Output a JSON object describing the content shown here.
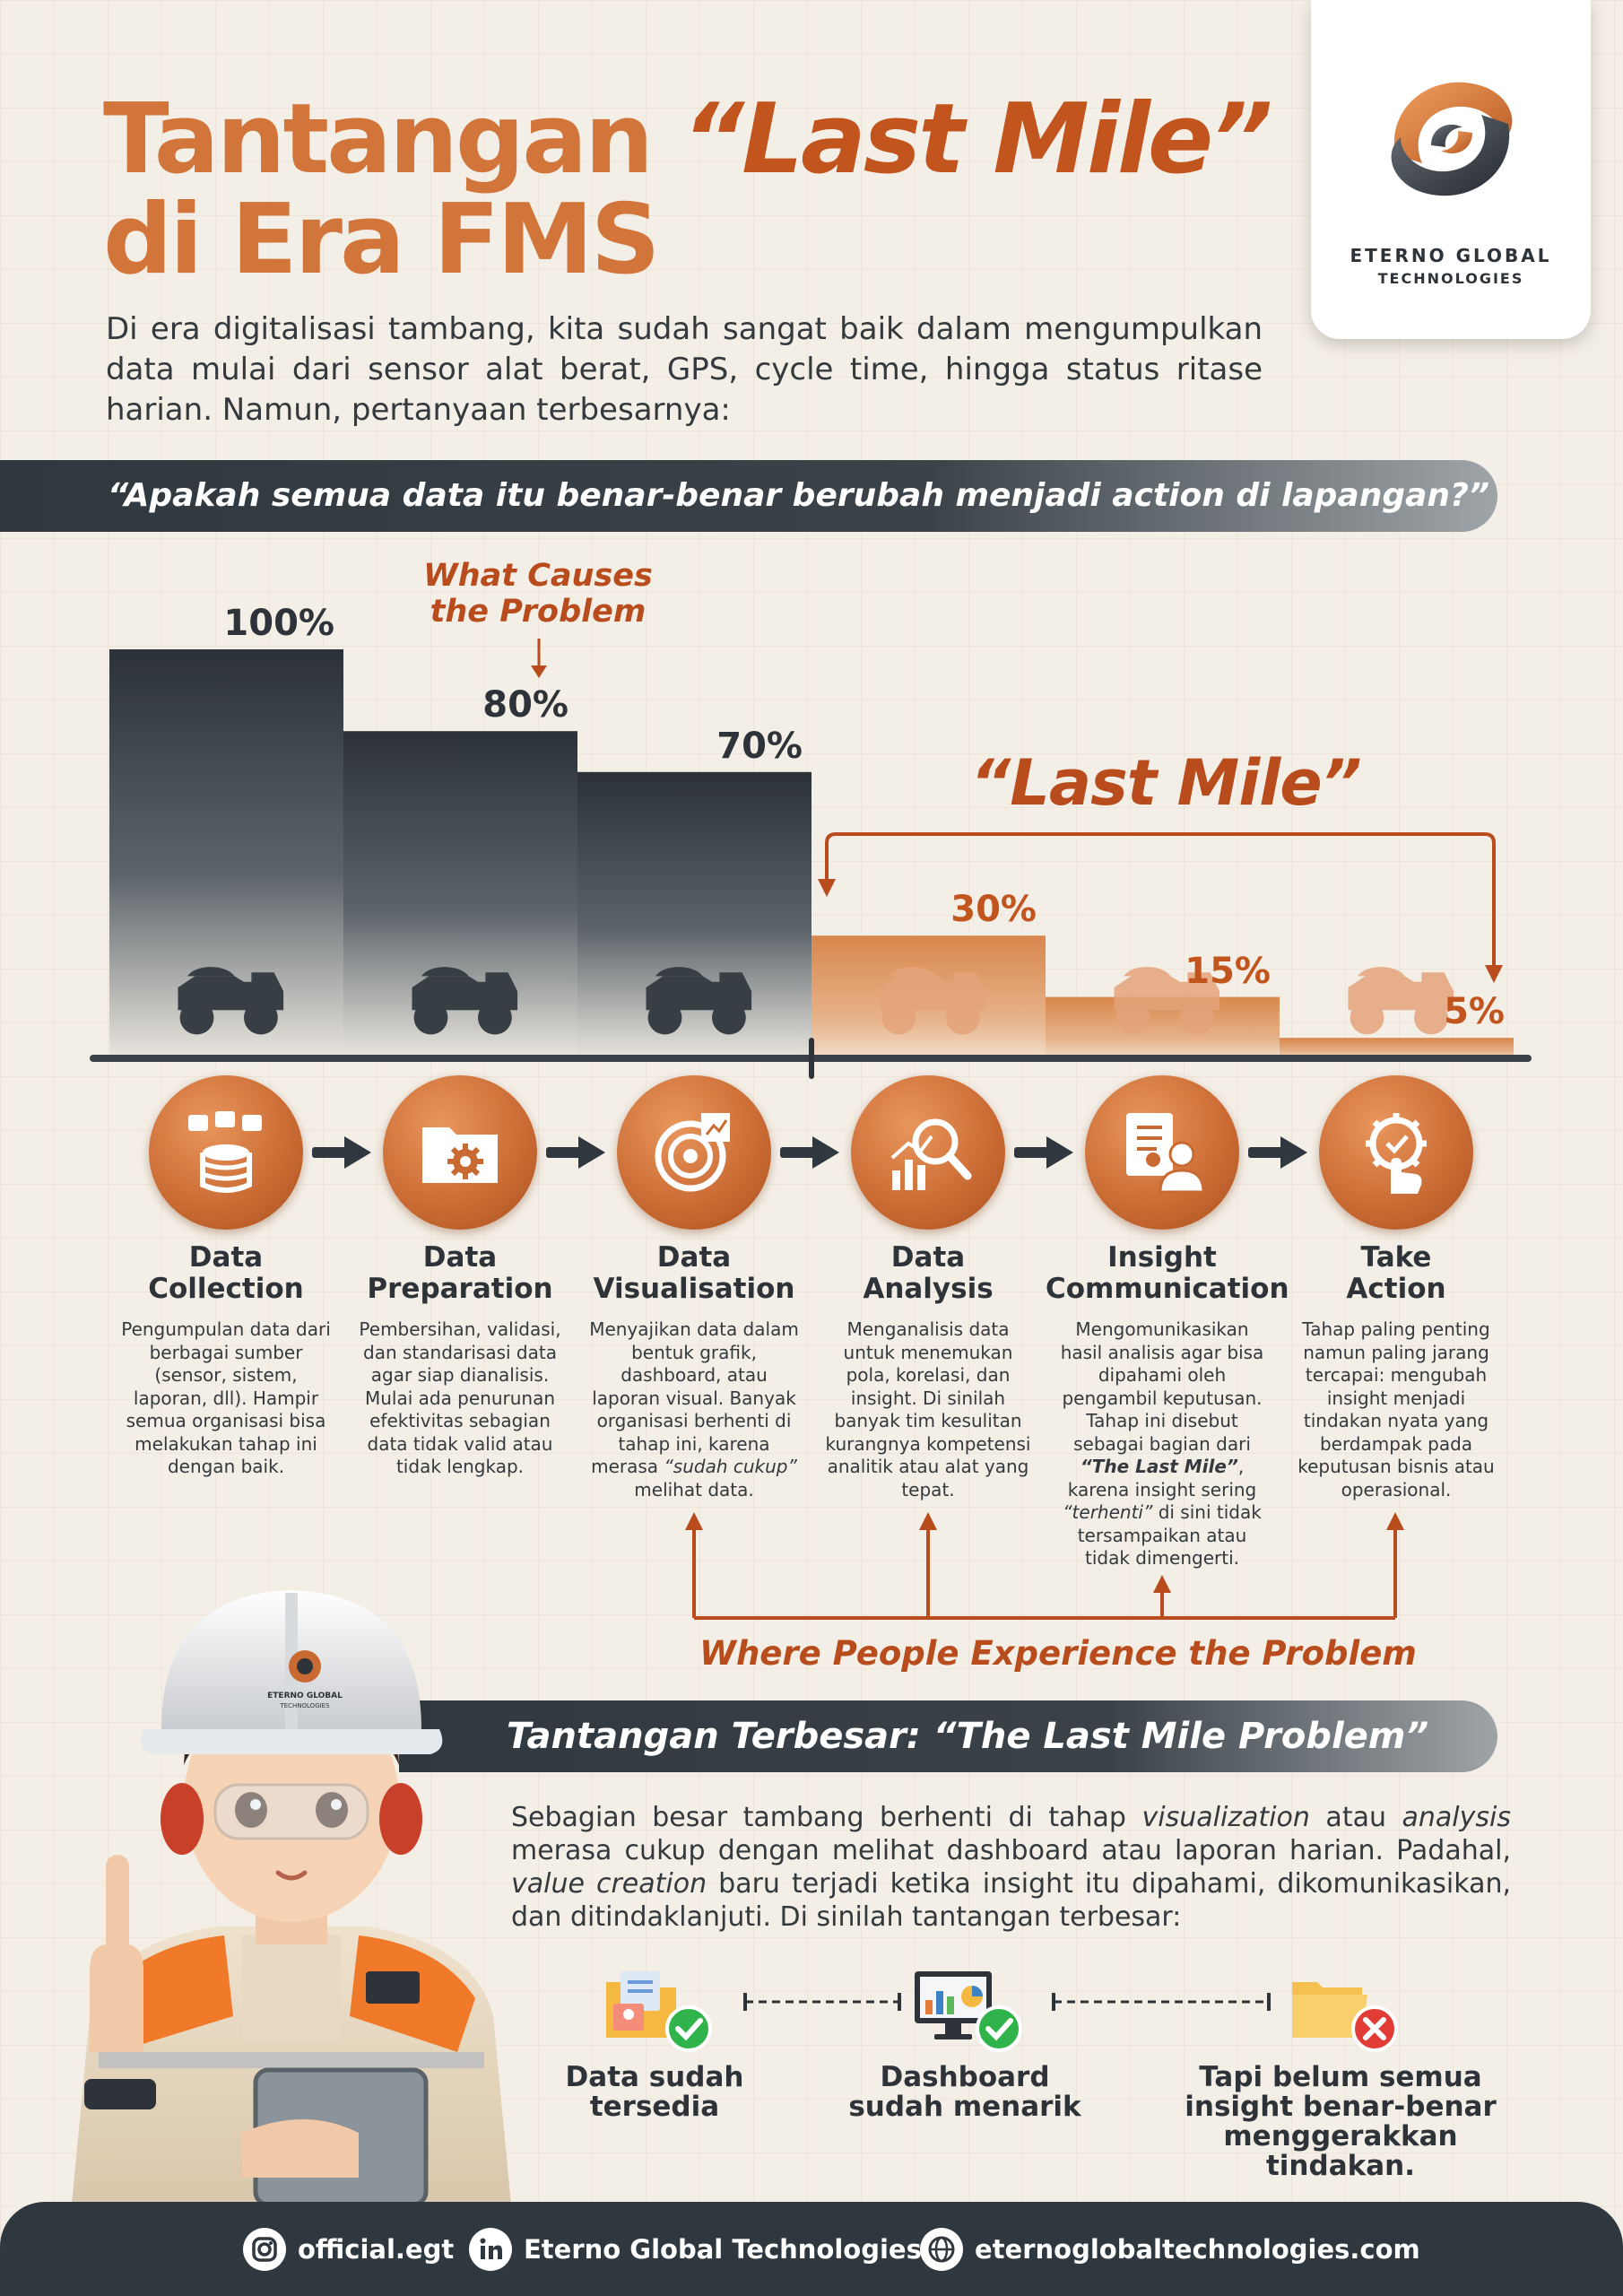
{
  "header": {
    "title_part1": "Tantangan ",
    "title_em": "“Last Mile”",
    "title_line2": "di Era FMS",
    "intro": "Di era digitalisasi tambang, kita sudah sangat baik dalam mengumpulkan data mulai dari sensor alat berat, GPS, cycle time, hingga status ritase harian. Namun, pertanyaan terbesarnya:"
  },
  "logo": {
    "line1": "ETERNO GLOBAL",
    "line2": "TECHNOLOGIES",
    "icon": "eterno-logo-icon"
  },
  "question": "“Apakah semua data itu benar-benar berubah menjadi action di lapangan?”",
  "chart": {
    "causes_label": "What Causes the Problem",
    "last_mile_label": "“Last Mile”",
    "bar_color_dark": "#2f363c",
    "bar_color_orange": "#d98a52"
  },
  "chart_data": {
    "type": "bar",
    "categories": [
      "Data Collection",
      "Data Preparation",
      "Data Visualisation",
      "Data Analysis",
      "Insight Communication",
      "Take Action"
    ],
    "values": [
      100,
      80,
      70,
      30,
      15,
      5
    ],
    "value_labels": [
      "100%",
      "80%",
      "70%",
      "30%",
      "15%",
      "5%"
    ],
    "title": "",
    "xlabel": "",
    "ylabel": "",
    "ylim": [
      0,
      100
    ],
    "grid": false
  },
  "steps": [
    {
      "title": "Data Collection",
      "icon": "database-icon",
      "desc": "Pengumpulan data dari berbagai sumber (sensor, sistem, laporan, dll). Hampir semua organisasi bisa melakukan tahap ini dengan baik."
    },
    {
      "title": "Data Preparation",
      "icon": "folder-gear-icon",
      "desc": "Pembersihan, validasi, dan standarisasi data agar siap dianalisis. Mulai ada penurunan efektivitas sebagian data tidak valid atau tidak lengkap."
    },
    {
      "title": "Data Visualisation",
      "icon": "chart-eye-icon",
      "desc_pre": "Menyajikan data dalam bentuk grafik, dashboard, atau laporan visual. Banyak organisasi berhenti di tahap ini, karena merasa ",
      "desc_em": "“sudah cukup”",
      "desc_post": " melihat data."
    },
    {
      "title": "Data Analysis",
      "icon": "magnifier-chart-icon",
      "desc": "Menganalisis data untuk menemukan pola, korelasi, dan insight. Di sinilah banyak tim kesulitan kurangnya kompetensi analitik atau alat yang tepat."
    },
    {
      "title": "Insight Communication",
      "icon": "report-person-icon",
      "desc_pre": "Mengomunikasikan hasil analisis agar bisa dipahami oleh pengambil keputusan. Tahap ini disebut sebagai bagian dari ",
      "desc_strong": "“The Last Mile”",
      "desc_mid": ", karena insight sering ",
      "desc_em": "“terhenti”",
      "desc_post": " di sini tidak tersampaikan atau tidak dimengerti."
    },
    {
      "title": "Take Action",
      "icon": "gear-hand-icon",
      "desc": "Tahap paling penting namun paling jarang tercapai: mengubah insight menjadi tindakan nyata yang berdampak pada keputusan bisnis atau operasional."
    }
  ],
  "where_label": "Where People Experience the Problem",
  "section2": {
    "title": "Tantangan Terbesar: “The Last Mile Problem”",
    "p1": "Sebagian besar tambang berhenti di tahap ",
    "em1": "visualization",
    "p2": " atau ",
    "em2": "analysis",
    "p3": " merasa cukup dengan melihat dashboard atau laporan harian. Padahal, ",
    "em3": "value creation",
    "p4": " baru terjadi ketika insight itu dipahami, dikomunikasikan, dan ditindaklanjuti. Di sinilah tantangan terbesar:"
  },
  "checks": [
    {
      "label": "Data sudah tersedia",
      "status": "ok",
      "icon": "folder-check-icon"
    },
    {
      "label": "Dashboard sudah menarik",
      "status": "ok",
      "icon": "monitor-check-icon"
    },
    {
      "label": "Tapi belum semua insight benar-benar menggerakkan tindakan.",
      "status": "fail",
      "icon": "folder-x-icon"
    }
  ],
  "footer": {
    "instagram": "official.egt",
    "linkedin": "Eterno Global Technologies",
    "website": "eternoglobaltechnologies.com"
  },
  "worker_badge": {
    "line1": "ETERNO GLOBAL",
    "line2": "TECHNOLOGIES"
  }
}
